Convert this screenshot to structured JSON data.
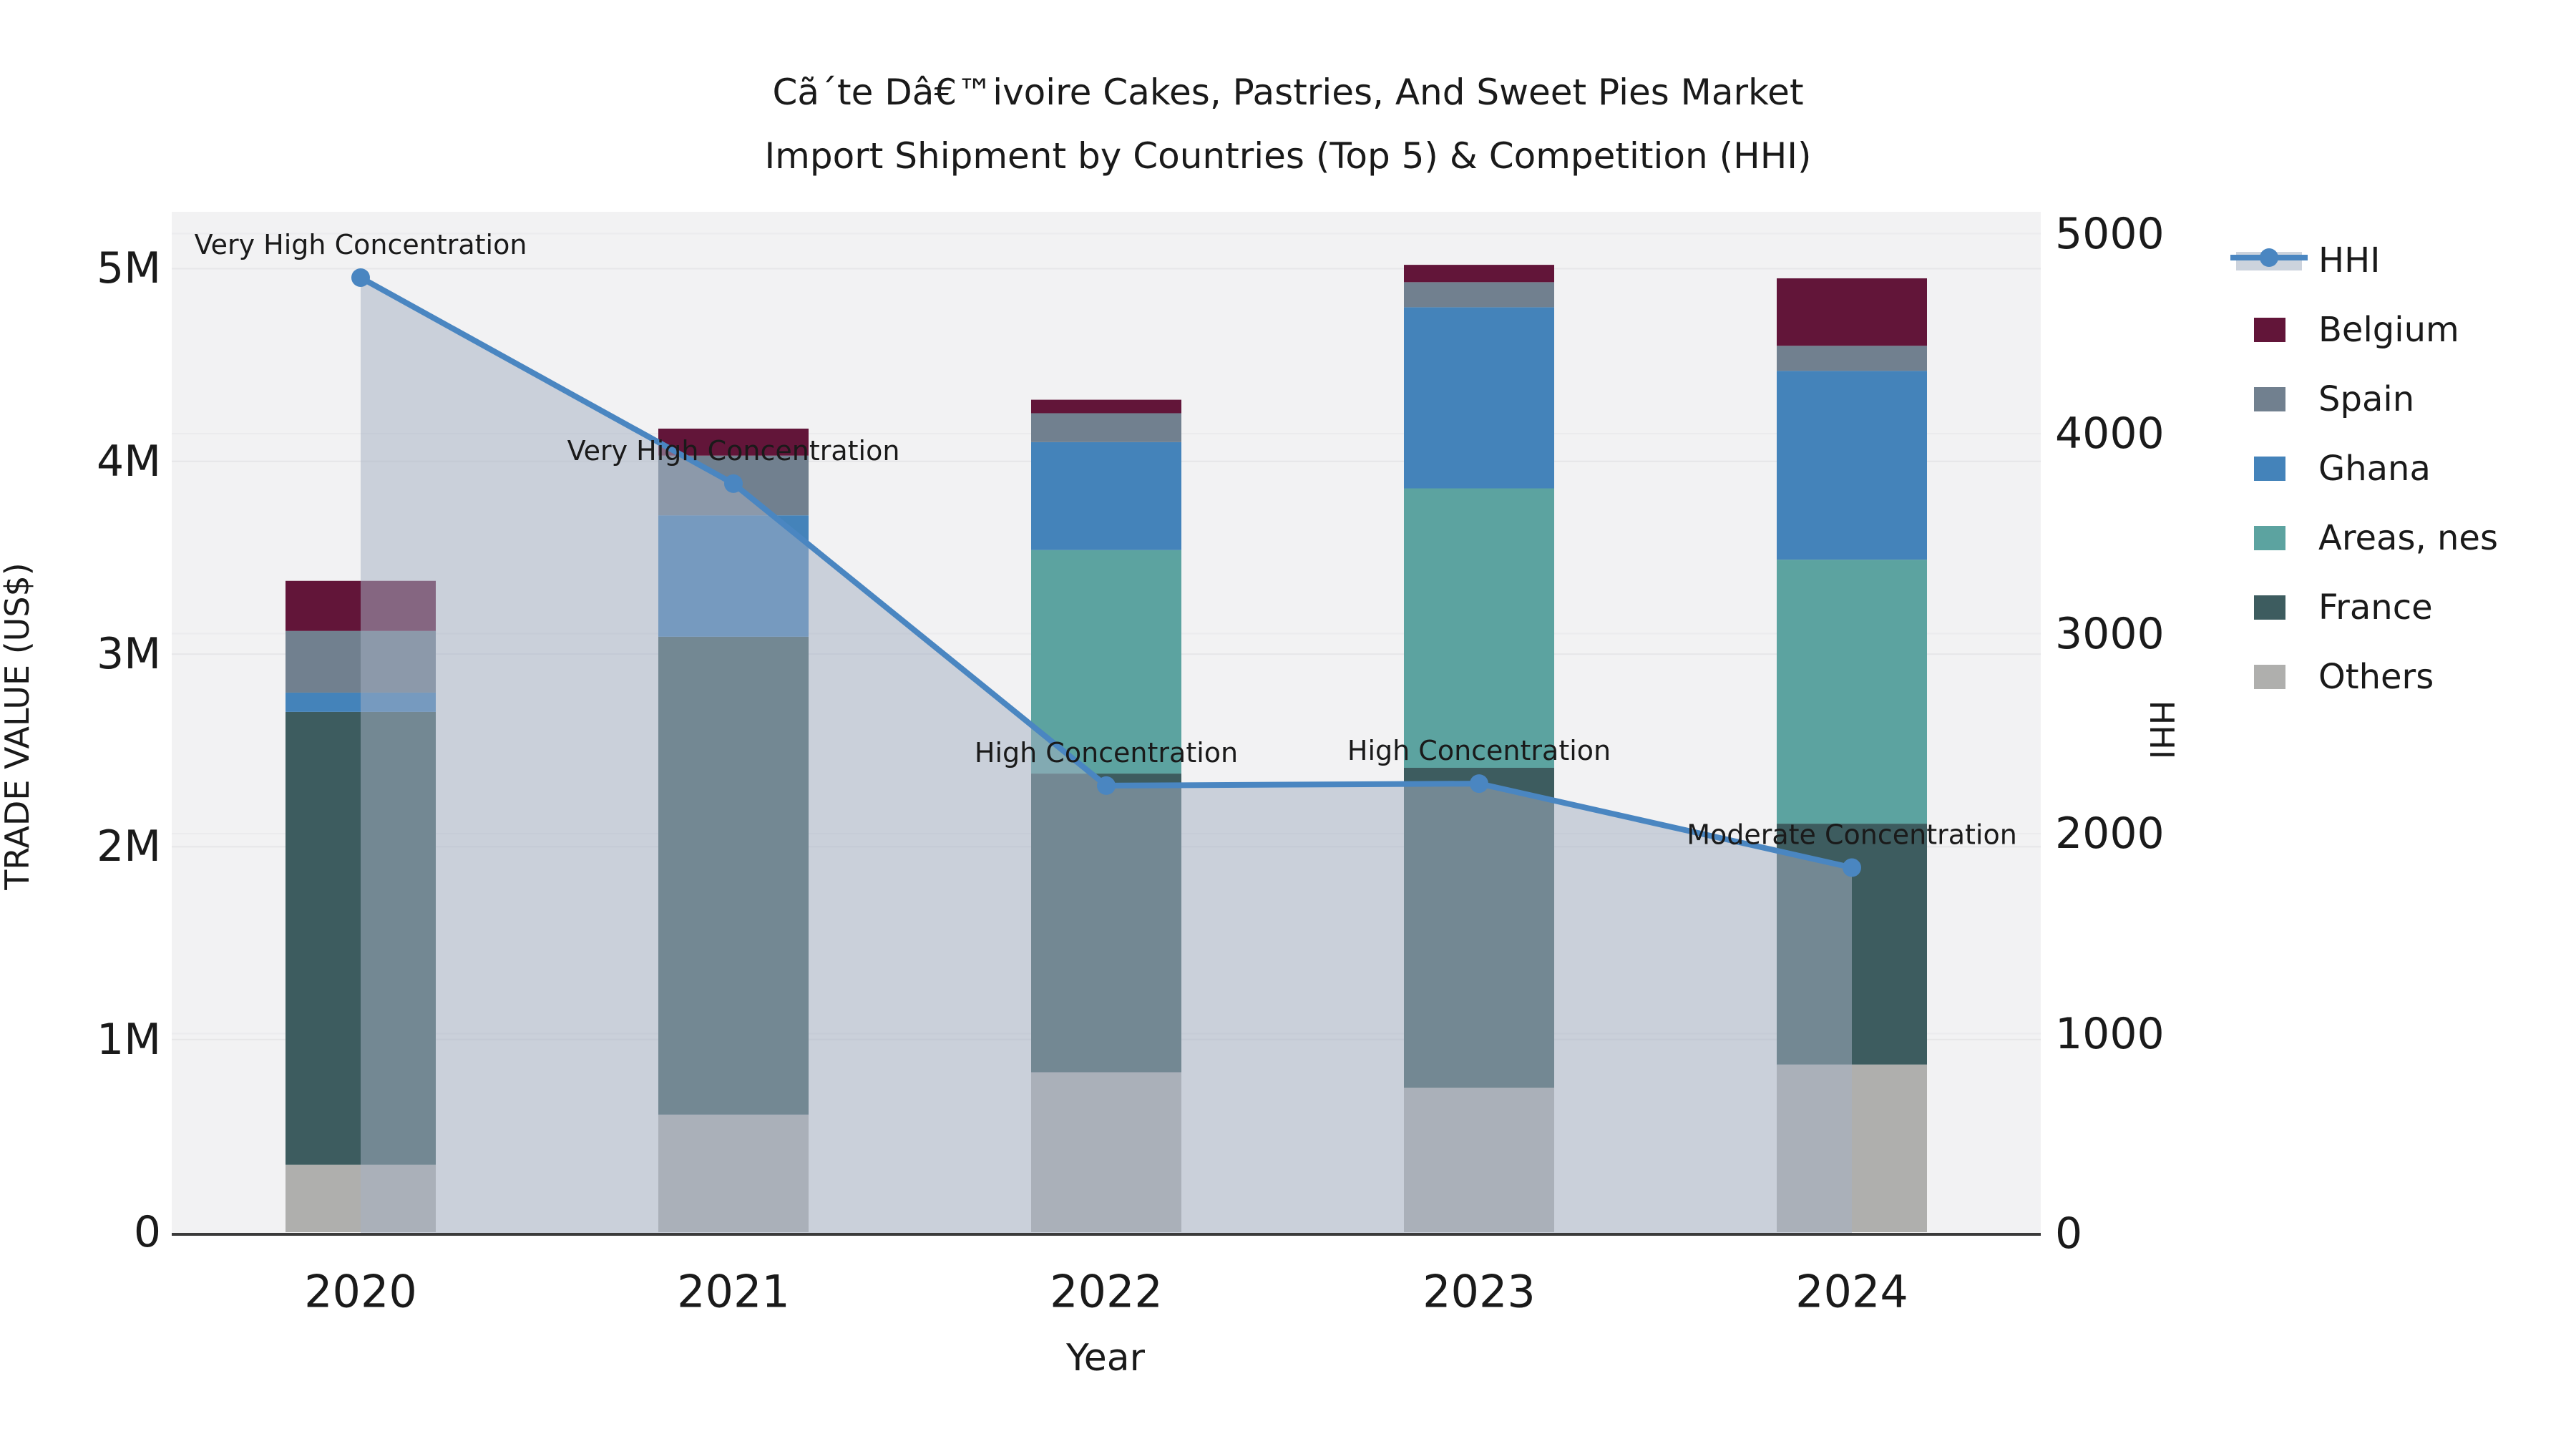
{
  "title": {
    "line1": "Cã´te Dâ€™ivoire Cakes, Pastries, And Sweet Pies Market",
    "line2": "Import Shipment by Countries (Top 5) & Competition (HHI)"
  },
  "axes": {
    "y_left_title": "TRADE VALUE (US$)",
    "y_right_title": "HHI",
    "x_title": "Year"
  },
  "legend": {
    "items": [
      {
        "label": "HHI",
        "type": "line",
        "color": "#4A86C1",
        "band_color": "#ccd3dd"
      },
      {
        "label": "Belgium",
        "type": "swatch",
        "color": "#621539"
      },
      {
        "label": "Spain",
        "type": "swatch",
        "color": "#71808F"
      },
      {
        "label": "Ghana",
        "type": "swatch",
        "color": "#4483BA"
      },
      {
        "label": "Areas, nes",
        "type": "swatch",
        "color": "#5CA3A0"
      },
      {
        "label": "France",
        "type": "swatch",
        "color": "#3D5C5F"
      },
      {
        "label": "Others",
        "type": "swatch",
        "color": "#AFAFAD"
      }
    ]
  },
  "chart_data": {
    "type": "bar",
    "subtype": "stacked-bars-with-line-overlay",
    "categories": [
      "2020",
      "2021",
      "2022",
      "2023",
      "2024"
    ],
    "units_left": "US$ (M = millions)",
    "units_right": "HHI index",
    "series": [
      {
        "name": "Others",
        "color": "#AFAFAD",
        "values": [
          0.35,
          0.61,
          0.83,
          0.75,
          0.87
        ]
      },
      {
        "name": "France",
        "color": "#3D5C5F",
        "values": [
          2.35,
          2.48,
          1.55,
          1.66,
          1.25
        ]
      },
      {
        "name": "Areas, nes",
        "color": "#5CA3A0",
        "values": [
          0.0,
          0.0,
          1.16,
          1.45,
          1.37
        ]
      },
      {
        "name": "Ghana",
        "color": "#4483BA",
        "values": [
          0.1,
          0.63,
          0.56,
          0.94,
          0.98
        ]
      },
      {
        "name": "Spain",
        "color": "#71808F",
        "values": [
          0.32,
          0.31,
          0.15,
          0.13,
          0.13
        ]
      },
      {
        "name": "Belgium",
        "color": "#621539",
        "values": [
          0.26,
          0.14,
          0.07,
          0.09,
          0.35
        ]
      }
    ],
    "bar_totals": [
      3.38,
      4.17,
      4.32,
      5.02,
      4.95
    ],
    "line": {
      "name": "HHI",
      "color": "#4A86C1",
      "area_fill": "rgba(165,177,196,0.52)",
      "values": [
        4780,
        3750,
        2240,
        2250,
        1830
      ]
    },
    "annotations": [
      {
        "category": "2020",
        "label": "Very High Concentration"
      },
      {
        "category": "2021",
        "label": "Very High Concentration"
      },
      {
        "category": "2022",
        "label": "High Concentration"
      },
      {
        "category": "2023",
        "label": "High Concentration"
      },
      {
        "category": "2024",
        "label": "Moderate Concentration"
      }
    ],
    "yticks_left": [
      "0",
      "1M",
      "2M",
      "3M",
      "4M",
      "5M"
    ],
    "yticks_right": [
      "0",
      "1000",
      "2000",
      "3000",
      "4000",
      "5000"
    ],
    "ylim_left": [
      0,
      5.3
    ],
    "ylim_right": [
      0,
      5100
    ],
    "grid": true,
    "legend_position": "right",
    "plot_bg": "#f2f2f3",
    "axis_line_color": "#3b3b3b"
  }
}
